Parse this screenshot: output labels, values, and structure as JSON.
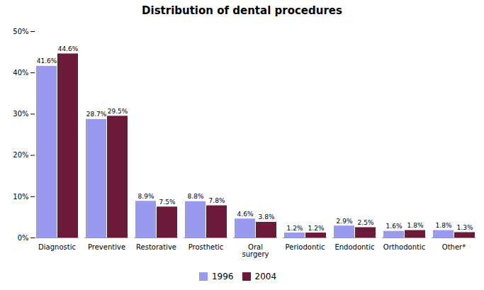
{
  "chart_data": {
    "type": "bar",
    "title": "Distribution of dental procedures",
    "categories": [
      "Diagnostic",
      "Preventive",
      "Restorative",
      "Prosthetic",
      "Oral\nsurgery",
      "Periodontic",
      "Endodontic",
      "Orthodontic",
      "Other*"
    ],
    "series": [
      {
        "name": "1996",
        "color": "#9999ee",
        "values": [
          41.6,
          28.7,
          8.9,
          8.8,
          4.6,
          1.2,
          2.9,
          1.6,
          1.8
        ],
        "value_labels": [
          "41.6%",
          "28.7%",
          "8.9%",
          "8.8%",
          "4.6%",
          "1.2%",
          "2.9%",
          "1.6%",
          "1.8%"
        ]
      },
      {
        "name": "2004",
        "color": "#6b1a3a",
        "values": [
          44.6,
          29.5,
          7.5,
          7.8,
          3.8,
          1.2,
          2.5,
          1.8,
          1.3
        ],
        "value_labels": [
          "44.6%",
          "29.5%",
          "7.5%",
          "7.8%",
          "3.8%",
          "1.2%",
          "2.5%",
          "1.8%",
          "1.3%"
        ]
      }
    ],
    "ylim": [
      0,
      50
    ],
    "yticks": [
      {
        "value": 0,
        "label": "0%"
      },
      {
        "value": 10,
        "label": "10%"
      },
      {
        "value": 20,
        "label": "20%"
      },
      {
        "value": 30,
        "label": "30%"
      },
      {
        "value": 40,
        "label": "40%"
      },
      {
        "value": 50,
        "label": "50%"
      }
    ],
    "grid": false,
    "data_labels": true,
    "legend": "bottom"
  }
}
